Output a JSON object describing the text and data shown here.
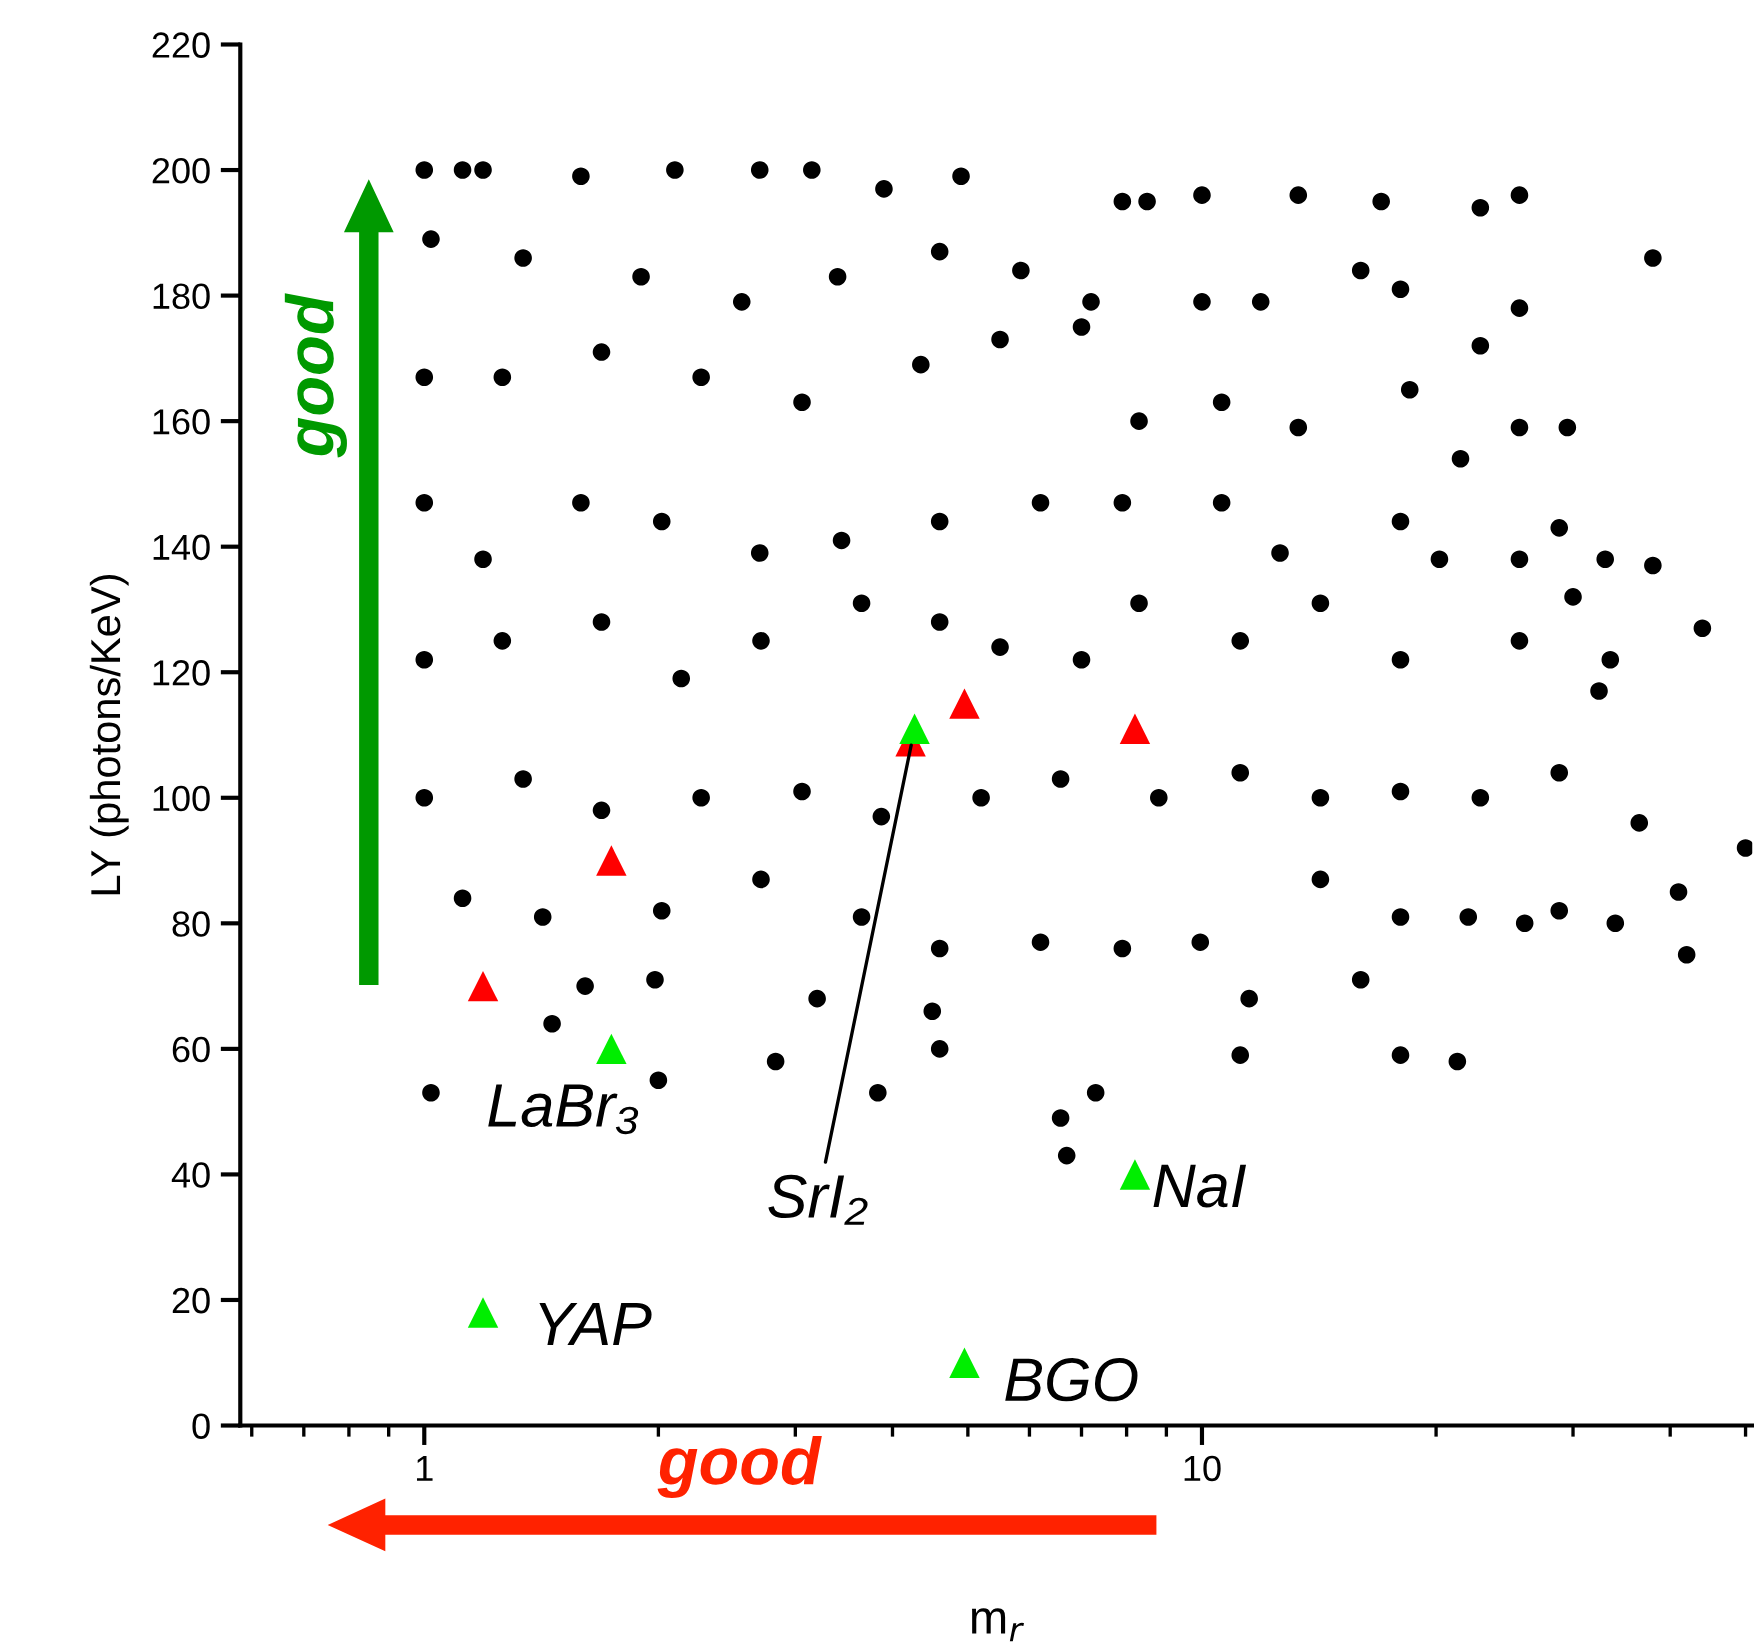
{
  "chart_data": {
    "type": "scatter",
    "xlabel": "m$_{r}$",
    "ylabel": "LY (photons/KeV)",
    "log": "x",
    "xlim": [
      0.58,
      51
    ],
    "xticks": [
      1,
      10
    ],
    "ylim": [
      0,
      220
    ],
    "yticks": [
      0,
      20,
      40,
      60,
      80,
      100,
      120,
      140,
      160,
      180,
      200,
      220
    ],
    "grid": false,
    "legend": false,
    "series": [
      {
        "color": "#000000",
        "marker": "circle",
        "x": [
          1.0,
          1.12,
          1.19,
          1.59,
          2.1,
          2.7,
          3.15,
          3.9,
          4.9,
          7.9,
          8.5,
          10,
          13.3,
          17,
          22.8,
          25.6,
          38,
          1.02,
          1.34,
          1.9,
          2.56,
          3.4,
          4.6,
          5.85,
          7.2,
          10,
          11.9,
          16,
          25.6,
          22.8,
          18,
          1.0,
          1.26,
          1.69,
          2.27,
          3.06,
          4.35,
          5.5,
          7.0,
          8.3,
          10.6,
          13.3,
          18.5,
          25.6,
          29.5,
          21.5,
          1.0,
          1.19,
          1.59,
          2.02,
          2.7,
          3.44,
          4.6,
          6.2,
          7.9,
          10.6,
          12.6,
          18,
          28.8,
          25.6,
          33,
          38,
          1.0,
          1.26,
          1.69,
          2.14,
          2.71,
          3.65,
          4.6,
          5.5,
          7.0,
          8.3,
          11.2,
          14.2,
          18,
          20.2,
          25.6,
          30,
          44,
          33.5,
          1.0,
          1.34,
          1.69,
          2.27,
          3.06,
          3.87,
          5.2,
          6.58,
          8.8,
          11.2,
          14.2,
          18,
          22.8,
          28.8,
          36.5,
          32.4,
          50,
          1.12,
          1.42,
          2.02,
          2.71,
          3.65,
          4.6,
          6.2,
          7.9,
          9.95,
          14.2,
          18,
          22,
          28.8,
          41,
          42,
          26,
          34,
          1.02,
          1.46,
          1.61,
          1.98,
          2.0,
          2.83,
          3.83,
          3.2,
          4.5,
          6.58,
          7.3,
          6.7,
          11.2,
          11.5,
          16,
          18,
          21.3,
          4.6
        ],
        "values": [
          200,
          200,
          200,
          199,
          200,
          200,
          200,
          197,
          199,
          195,
          195,
          196,
          196,
          195,
          194,
          196,
          186,
          189,
          186,
          183,
          179,
          183,
          187,
          184,
          179,
          179,
          179,
          184,
          178,
          172,
          181,
          167,
          167,
          171,
          167,
          163,
          169,
          173,
          175,
          160,
          163,
          159,
          165,
          159,
          159,
          154,
          147,
          138,
          147,
          144,
          139,
          141,
          144,
          147,
          147,
          147,
          139,
          144,
          143,
          138,
          138,
          137,
          122,
          125,
          128,
          119,
          125,
          131,
          128,
          124,
          122,
          131,
          125,
          131,
          122,
          138,
          125,
          132,
          127,
          122,
          100,
          103,
          98,
          100,
          101,
          97,
          100,
          103,
          100,
          104,
          100,
          101,
          100,
          104,
          96,
          117,
          92,
          84,
          81,
          82,
          87,
          81,
          76,
          77,
          76,
          77,
          87,
          81,
          81,
          82,
          85,
          75,
          80,
          80,
          53,
          64,
          70,
          71,
          55,
          58,
          53,
          68,
          66,
          49,
          53,
          43,
          59,
          68,
          71,
          59,
          58,
          60
        ]
      },
      {
        "color": "#ff0000",
        "marker": "triangle",
        "x": [
          1.19,
          1.74,
          4.22,
          4.95,
          8.2
        ],
        "values": [
          70,
          90,
          109,
          115,
          111
        ]
      },
      {
        "color": "#00ee00",
        "marker": "triangle",
        "x": [
          1.74,
          4.27,
          8.2,
          1.19,
          4.95
        ],
        "values": [
          60,
          111,
          40,
          18,
          10
        ]
      }
    ],
    "annotations": [
      {
        "text": "LaBr₃",
        "x": 1.74,
        "y": 60
      },
      {
        "text": "SrI₂",
        "x": 4.27,
        "y": 111
      },
      {
        "text": "NaI",
        "x": 8.2,
        "y": 40
      },
      {
        "text": "YAP",
        "x": 1.19,
        "y": 18
      },
      {
        "text": "BGO",
        "x": 4.95,
        "y": 10
      },
      "good",
      "good"
    ]
  }
}
